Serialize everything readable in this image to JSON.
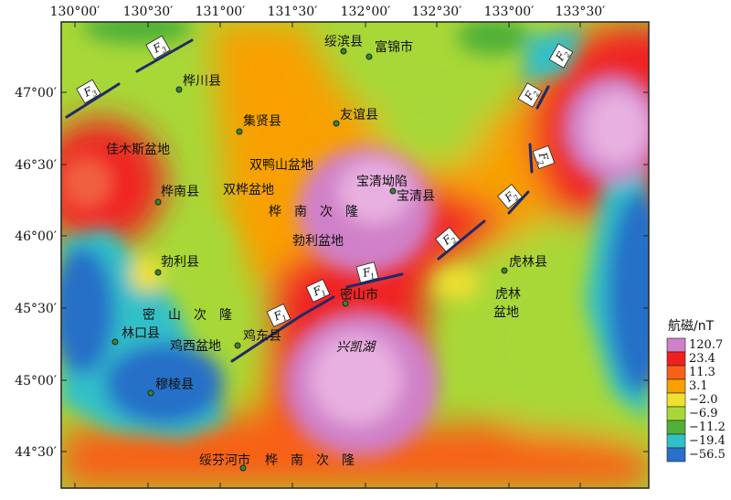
{
  "x_ticks": [
    "130°00′",
    "130°30′",
    "131°00′",
    "131°30′",
    "132°00′",
    "132°30′",
    "133°00′",
    "133°30′"
  ],
  "y_ticks": [
    "47°00′",
    "46°30′",
    "46°00′",
    "45°30′",
    "45°00′",
    "44°30′"
  ],
  "places": {
    "suibin": "绥滨县",
    "fujin": "富锦市",
    "huachuan": "桦川县",
    "jixian": "集贤县",
    "youyi": "友谊县",
    "jiamusi_basin": "佳木斯盆地",
    "shuangyashan_basin": "双鸭山盆地",
    "baoqing_depression": "宝清坳陷",
    "baoqing": "宝清县",
    "huanan": "桦南县",
    "shuanghua_basin": "双桦盆地",
    "huanan_uplift_north": "桦　南　次　隆",
    "boli_basin": "勃利盆地",
    "boli": "勃利县",
    "hulin": "虎林县",
    "hulin_basin_1": "虎林",
    "hulin_basin_2": "盆地",
    "mishan_uplift": "密　山　次　隆",
    "mishan": "密山市",
    "linkou": "林口县",
    "jixi_basin": "鸡西盆地",
    "jidong": "鸡东县",
    "xingkai_lake": "兴凯湖",
    "muling": "穆棱县",
    "suifenhe": "绥芬河市",
    "huanan_uplift_south": "桦　南　次　隆"
  },
  "faults": {
    "f1_main": "F",
    "f1_sub": "1",
    "f2_main": "F",
    "f2_sub": "2",
    "f3_main": "F",
    "f3_sub": "3"
  },
  "legend": {
    "title": "航磁/nT",
    "values": [
      "120.7",
      "23.4",
      "11.3",
      "3.1",
      "−2.0",
      "−6.9",
      "−11.2",
      "−19.4",
      "−56.5"
    ],
    "colors": [
      "#d080c8",
      "#f02020",
      "#f86018",
      "#f8a000",
      "#f0e030",
      "#a8d838",
      "#50b038",
      "#30c0c8",
      "#2870c8"
    ]
  }
}
